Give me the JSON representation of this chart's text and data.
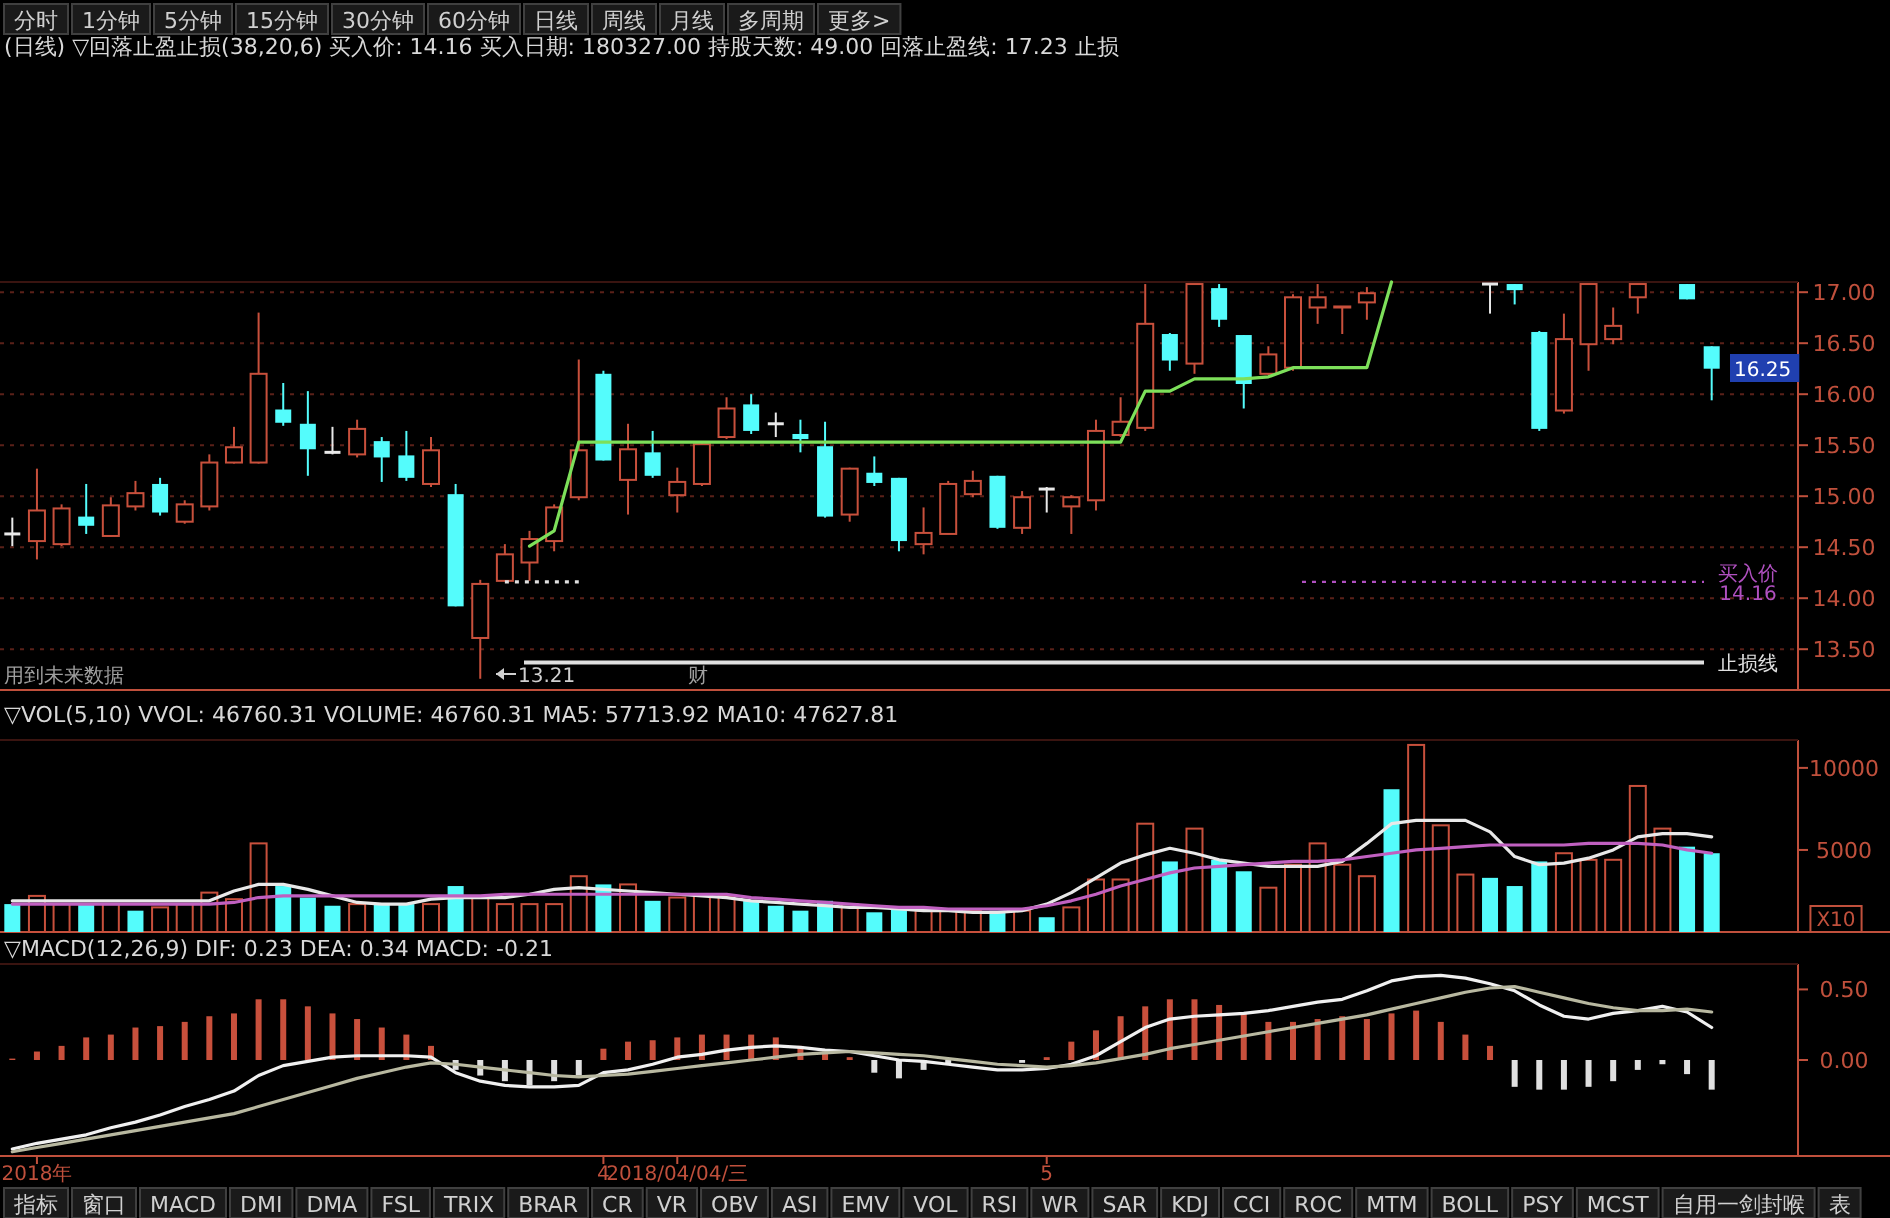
{
  "chart_data": [
    {
      "type": "other",
      "annotations": [
        "分时",
        "1分钟",
        "5分钟",
        "15分钟",
        "30分钟",
        "60分钟",
        "日线",
        "周线",
        "月线",
        "多周期",
        "更多>"
      ]
    },
    {
      "type": "candlestick",
      "title": "(日线) ▽回落止盈止损(38,20,6) 买入价: 14.16 买入日期: 180327.00 持股天数: 49.00 回落止盈线: 17.23 止损",
      "categories": [
        null,
        null,
        null,
        null,
        null,
        null,
        null,
        null,
        null,
        null,
        null,
        null,
        null,
        null,
        null,
        null,
        null,
        null,
        null,
        null,
        null,
        null,
        null,
        null,
        null,
        null,
        null,
        null,
        null,
        null,
        null,
        null,
        null,
        null,
        null,
        null,
        null,
        null,
        null,
        null,
        null,
        null,
        null,
        null,
        null,
        null,
        null,
        null,
        null,
        null,
        null,
        null,
        null,
        null,
        null,
        null,
        null,
        null,
        null,
        null,
        null,
        null,
        null,
        null,
        null,
        null,
        null,
        null,
        null,
        null
      ],
      "ohlc": [
        [
          14.63,
          14.79,
          14.51,
          14.63
        ],
        [
          14.56,
          15.27,
          14.38,
          14.86
        ],
        [
          14.53,
          14.92,
          14.51,
          14.88
        ],
        [
          14.8,
          15.12,
          14.63,
          14.71
        ],
        [
          14.61,
          14.99,
          14.6,
          14.91
        ],
        [
          14.9,
          15.15,
          14.86,
          15.03
        ],
        [
          15.12,
          15.18,
          14.81,
          14.84
        ],
        [
          14.75,
          14.96,
          14.73,
          14.92
        ],
        [
          14.9,
          15.41,
          14.86,
          15.33
        ],
        [
          15.33,
          15.68,
          15.32,
          15.48
        ],
        [
          15.33,
          16.8,
          15.32,
          16.2
        ],
        [
          15.85,
          16.11,
          15.69,
          15.72
        ],
        [
          15.71,
          16.03,
          15.2,
          15.46
        ],
        [
          15.43,
          15.68,
          15.41,
          15.43
        ],
        [
          15.41,
          15.75,
          15.38,
          15.66
        ],
        [
          15.54,
          15.58,
          15.14,
          15.38
        ],
        [
          15.4,
          15.64,
          15.15,
          15.18
        ],
        [
          15.12,
          15.58,
          15.09,
          15.45
        ],
        [
          15.02,
          15.12,
          13.92,
          13.92
        ],
        [
          13.61,
          14.18,
          13.21,
          14.14
        ],
        [
          14.17,
          14.53,
          14.17,
          14.43
        ],
        [
          14.35,
          14.66,
          14.17,
          14.58
        ],
        [
          14.56,
          14.92,
          14.46,
          14.89
        ],
        [
          14.99,
          16.34,
          14.96,
          15.45
        ],
        [
          16.2,
          16.23,
          15.35,
          15.35
        ],
        [
          15.16,
          15.71,
          14.82,
          15.46
        ],
        [
          15.43,
          15.64,
          15.18,
          15.2
        ],
        [
          15.01,
          15.28,
          14.84,
          15.14
        ],
        [
          15.12,
          15.54,
          15.1,
          15.51
        ],
        [
          15.58,
          15.97,
          15.56,
          15.86
        ],
        [
          15.9,
          16.0,
          15.61,
          15.64
        ],
        [
          15.71,
          15.82,
          15.58,
          15.71
        ],
        [
          15.61,
          15.75,
          15.43,
          15.56
        ],
        [
          15.49,
          15.73,
          14.79,
          14.8
        ],
        [
          14.82,
          15.28,
          14.75,
          15.27
        ],
        [
          15.23,
          15.39,
          15.1,
          15.13
        ],
        [
          15.18,
          15.18,
          14.46,
          14.56
        ],
        [
          14.53,
          14.89,
          14.43,
          14.64
        ],
        [
          14.63,
          15.15,
          14.63,
          15.12
        ],
        [
          15.02,
          15.25,
          14.99,
          15.15
        ],
        [
          15.2,
          15.2,
          14.68,
          14.69
        ],
        [
          14.69,
          15.05,
          14.63,
          14.99
        ],
        [
          15.07,
          15.09,
          14.84,
          15.07
        ],
        [
          14.9,
          15.01,
          14.63,
          14.99
        ],
        [
          14.96,
          15.75,
          14.86,
          15.64
        ],
        [
          15.6,
          15.97,
          15.58,
          15.73
        ],
        [
          15.67,
          17.08,
          15.64,
          16.69
        ],
        [
          16.59,
          16.6,
          16.23,
          16.33
        ],
        [
          16.3,
          17.08,
          16.2,
          17.08
        ],
        [
          17.04,
          17.08,
          16.66,
          16.73
        ],
        [
          16.58,
          16.58,
          15.86,
          16.1
        ],
        [
          16.2,
          16.47,
          16.19,
          16.39
        ],
        [
          16.26,
          16.98,
          16.23,
          16.95
        ],
        [
          16.85,
          17.08,
          16.69,
          16.95
        ],
        [
          16.85,
          16.86,
          16.59,
          16.86
        ],
        [
          16.9,
          17.05,
          16.73,
          16.99
        ],
        null,
        null,
        null,
        null,
        [
          17.08,
          17.08,
          16.79,
          17.08
        ],
        [
          17.08,
          17.08,
          16.88,
          17.02
        ],
        [
          16.61,
          16.62,
          15.64,
          15.66
        ],
        [
          15.84,
          16.79,
          15.81,
          16.54
        ],
        [
          16.49,
          17.08,
          16.23,
          17.08
        ],
        [
          16.54,
          16.85,
          16.49,
          16.67
        ],
        [
          16.95,
          17.08,
          16.79,
          17.08
        ],
        null,
        [
          17.08,
          17.08,
          16.93,
          16.93
        ],
        [
          16.47,
          16.47,
          15.94,
          16.25
        ]
      ],
      "colors": [
        "#e8e8e8",
        "#c8503c",
        "#c8503c",
        "#54fcfc",
        "#c8503c",
        "#c8503c",
        "#54fcfc",
        "#c8503c",
        "#c8503c",
        "#c8503c",
        "#c8503c",
        "#54fcfc",
        "#54fcfc",
        "#e8e8e8",
        "#c8503c",
        "#54fcfc",
        "#54fcfc",
        "#c8503c",
        "#54fcfc",
        "#c8503c",
        "#c8503c",
        "#c8503c",
        "#c8503c",
        "#c8503c",
        "#54fcfc",
        "#c8503c",
        "#54fcfc",
        "#c8503c",
        "#c8503c",
        "#c8503c",
        "#54fcfc",
        "#e8e8e8",
        "#54fcfc",
        "#54fcfc",
        "#c8503c",
        "#54fcfc",
        "#54fcfc",
        "#c8503c",
        "#c8503c",
        "#c8503c",
        "#54fcfc",
        "#c8503c",
        "#e8e8e8",
        "#c8503c",
        "#c8503c",
        "#c8503c",
        "#c8503c",
        "#54fcfc",
        "#c8503c",
        "#54fcfc",
        "#54fcfc",
        "#c8503c",
        "#c8503c",
        "#c8503c",
        "#c8503c",
        "#c8503c",
        null,
        null,
        null,
        null,
        "#e8e8e8",
        "#54fcfc",
        "#54fcfc",
        "#c8503c",
        "#c8503c",
        "#c8503c",
        "#c8503c",
        null,
        "#54fcfc",
        "#54fcfc"
      ],
      "series": [
        {
          "type": "line",
          "color": "#7de05a",
          "values": [
            null,
            null,
            null,
            null,
            null,
            null,
            null,
            null,
            null,
            null,
            null,
            null,
            null,
            null,
            null,
            null,
            null,
            null,
            null,
            null,
            null,
            14.51,
            14.66,
            15.53,
            15.53,
            15.53,
            15.53,
            15.53,
            15.53,
            15.53,
            15.53,
            15.53,
            15.53,
            15.53,
            15.53,
            15.53,
            15.53,
            15.53,
            15.53,
            15.53,
            15.53,
            15.53,
            15.53,
            15.53,
            15.53,
            15.53,
            16.03,
            16.03,
            16.15,
            16.15,
            16.15,
            16.17,
            16.26,
            16.26,
            16.26,
            16.26,
            17.1,
            null,
            null,
            null,
            null,
            null,
            null,
            null,
            null,
            null,
            null,
            null,
            null,
            null
          ]
        },
        {
          "type": "line",
          "color": "#e0e0e0",
          "line_style": "dotted",
          "values": [
            null,
            null,
            null,
            null,
            null,
            null,
            null,
            null,
            null,
            null,
            null,
            null,
            null,
            null,
            null,
            null,
            null,
            null,
            null,
            null,
            14.16,
            14.16,
            14.16,
            14.16,
            null,
            null,
            null,
            null,
            null,
            null,
            null,
            null,
            null,
            null,
            null,
            null,
            null,
            null,
            null,
            null,
            null,
            null,
            null,
            null,
            null,
            null,
            null,
            null,
            null,
            null,
            null,
            null,
            null,
            null,
            null,
            null,
            null,
            null,
            null,
            null,
            null,
            null,
            null,
            null,
            null,
            null,
            null,
            null,
            null,
            null
          ]
        }
      ],
      "ylim": [
        13.1,
        17.1
      ],
      "yticks": [
        {
          "value": 13.5,
          "label": "13.50"
        },
        {
          "value": 14,
          "label": "14.00"
        },
        {
          "value": 14.5,
          "label": "14.50"
        },
        {
          "value": 15,
          "label": "15.00"
        },
        {
          "value": 15.5,
          "label": "15.50"
        },
        {
          "value": 16,
          "label": "16.00"
        },
        {
          "value": 16.5,
          "label": "16.50"
        },
        {
          "value": 17,
          "label": "17.00"
        }
      ],
      "grid": "y",
      "ref_lines": [
        {
          "axis": "y",
          "value": 14.16,
          "label": "买入价\n14.16",
          "color": "#b050c0",
          "line_style": "dotted"
        },
        {
          "axis": "y",
          "value": 13.37,
          "label": "止损线",
          "color": "#e0e0e0",
          "line_style": "solid"
        }
      ],
      "annotations": [
        "用到未来数据",
        "13.21",
        "财",
        "16.25"
      ]
    },
    {
      "type": "bar",
      "title": "▽VOL(5,10) VVOL: 46760.31 VOLUME: 46760.31 MA5: 57713.92 MA10: 47627.81",
      "ylabel": "X10",
      "categories": [
        null,
        null,
        null,
        null,
        null,
        null,
        null,
        null,
        null,
        null,
        null,
        null,
        null,
        null,
        null,
        null,
        null,
        null,
        null,
        null,
        null,
        null,
        null,
        null,
        null,
        null,
        null,
        null,
        null,
        null,
        null,
        null,
        null,
        null,
        null,
        null,
        null,
        null,
        null,
        null,
        null,
        null,
        null,
        null,
        null,
        null,
        null,
        null,
        null,
        null,
        null,
        null,
        null,
        null,
        null,
        null,
        null,
        null,
        null,
        null,
        null,
        null,
        null,
        null,
        null,
        null,
        null,
        null,
        null,
        null
      ],
      "series": [
        {
          "type": "bar",
          "values": [
            1700,
            2200,
            1700,
            1700,
            1700,
            1300,
            1500,
            1700,
            2400,
            2000,
            5400,
            2800,
            2100,
            1600,
            1700,
            1700,
            1700,
            1700,
            2800,
            2100,
            1700,
            1700,
            1700,
            3400,
            2900,
            2900,
            1900,
            2100,
            2200,
            2200,
            1900,
            1600,
            1300,
            1900,
            1700,
            1200,
            1500,
            1300,
            1300,
            1300,
            1300,
            1300,
            900,
            1500,
            3200,
            3200,
            6600,
            4300,
            6300,
            4400,
            3700,
            2700,
            4100,
            5400,
            4100,
            3400,
            8700,
            11400,
            6500,
            3500,
            3300,
            2800,
            4300,
            4800,
            4400,
            4400,
            8900,
            6300,
            5200,
            4800
          ],
          "colors": [
            "#54fcfc",
            "#c8503c",
            "#c8503c",
            "#54fcfc",
            "#c8503c",
            "#54fcfc",
            "#c8503c",
            "#c8503c",
            "#c8503c",
            "#c8503c",
            "#c8503c",
            "#54fcfc",
            "#54fcfc",
            "#54fcfc",
            "#c8503c",
            "#54fcfc",
            "#54fcfc",
            "#c8503c",
            "#54fcfc",
            "#c8503c",
            "#c8503c",
            "#c8503c",
            "#c8503c",
            "#c8503c",
            "#54fcfc",
            "#c8503c",
            "#54fcfc",
            "#c8503c",
            "#c8503c",
            "#c8503c",
            "#54fcfc",
            "#54fcfc",
            "#54fcfc",
            "#54fcfc",
            "#c8503c",
            "#54fcfc",
            "#54fcfc",
            "#c8503c",
            "#c8503c",
            "#c8503c",
            "#54fcfc",
            "#c8503c",
            "#54fcfc",
            "#c8503c",
            "#c8503c",
            "#c8503c",
            "#c8503c",
            "#54fcfc",
            "#c8503c",
            "#54fcfc",
            "#54fcfc",
            "#c8503c",
            "#c8503c",
            "#c8503c",
            "#c8503c",
            "#c8503c",
            "#54fcfc",
            "#c8503c",
            "#c8503c",
            "#c8503c",
            "#54fcfc",
            "#54fcfc",
            "#54fcfc",
            "#c8503c",
            "#c8503c",
            "#c8503c",
            "#c8503c",
            "#c8503c",
            "#54fcfc",
            "#54fcfc"
          ]
        },
        {
          "type": "line",
          "color": "#e8e8e8",
          "values": [
            1900,
            1900,
            1900,
            1900,
            1900,
            1900,
            1900,
            1900,
            1900,
            2500,
            2900,
            2900,
            2600,
            2200,
            1800,
            1700,
            1700,
            2000,
            2100,
            2100,
            2100,
            2300,
            2600,
            2700,
            2600,
            2500,
            2400,
            2300,
            2200,
            2100,
            1900,
            1800,
            1700,
            1600,
            1500,
            1500,
            1400,
            1300,
            1300,
            1200,
            1200,
            1300,
            1700,
            2400,
            3300,
            4200,
            4700,
            5100,
            4800,
            4400,
            4200,
            4000,
            4000,
            4000,
            4300,
            5400,
            6600,
            6800,
            6800,
            6800,
            6100,
            4600,
            4100,
            4200,
            4500,
            5000,
            5800,
            6000,
            6000,
            5800
          ]
        },
        {
          "type": "line",
          "color": "#c060c0",
          "values": [
            1700,
            1700,
            1700,
            1700,
            1700,
            1700,
            1700,
            1700,
            1700,
            1800,
            2100,
            2200,
            2200,
            2200,
            2200,
            2200,
            2200,
            2200,
            2200,
            2200,
            2300,
            2300,
            2300,
            2300,
            2300,
            2300,
            2300,
            2300,
            2300,
            2300,
            2100,
            2000,
            1900,
            1800,
            1700,
            1600,
            1500,
            1500,
            1400,
            1400,
            1400,
            1400,
            1600,
            1900,
            2300,
            2800,
            3200,
            3600,
            3900,
            4000,
            4100,
            4200,
            4300,
            4300,
            4400,
            4600,
            4800,
            5000,
            5100,
            5200,
            5300,
            5300,
            5300,
            5300,
            5400,
            5400,
            5400,
            5300,
            5000,
            4800
          ]
        }
      ],
      "ylim": [
        0,
        11700
      ],
      "yticks": [
        5000,
        10000
      ]
    },
    {
      "type": "bar",
      "title": "▽MACD(12,26,9) DIF: 0.23 DEA: 0.34 MACD: -0.21",
      "categories": [
        null,
        "2018年",
        null,
        null,
        null,
        null,
        null,
        null,
        null,
        null,
        null,
        null,
        null,
        null,
        null,
        null,
        null,
        null,
        null,
        null,
        null,
        null,
        null,
        null,
        "4",
        null,
        null,
        "2018/04/04/三",
        null,
        null,
        null,
        null,
        null,
        null,
        null,
        null,
        null,
        null,
        null,
        null,
        null,
        null,
        "5",
        null,
        null,
        null,
        null,
        null,
        null,
        null,
        null,
        null,
        null,
        null,
        null,
        null,
        null,
        null,
        null,
        null,
        null,
        null,
        null,
        null,
        null,
        null,
        null,
        null,
        null,
        null
      ],
      "series": [
        {
          "type": "bar",
          "values": [
            0.01,
            0.06,
            0.1,
            0.16,
            0.18,
            0.23,
            0.24,
            0.27,
            0.31,
            0.33,
            0.43,
            0.43,
            0.38,
            0.33,
            0.29,
            0.23,
            0.18,
            0.1,
            -0.07,
            -0.11,
            -0.15,
            -0.18,
            -0.15,
            -0.11,
            0.08,
            0.13,
            0.14,
            0.16,
            0.18,
            0.18,
            0.18,
            0.16,
            0.1,
            0.06,
            0.02,
            -0.09,
            -0.13,
            -0.07,
            -0.03,
            null,
            null,
            -0.02,
            0.02,
            0.13,
            0.21,
            0.31,
            0.38,
            0.43,
            0.43,
            0.39,
            0.33,
            0.27,
            0.27,
            0.29,
            0.31,
            0.29,
            0.33,
            0.35,
            0.27,
            0.18,
            0.1,
            -0.19,
            -0.21,
            -0.21,
            -0.19,
            -0.15,
            -0.07,
            -0.03,
            -0.1,
            -0.21
          ],
          "colors": [
            "#c8503c",
            "#c8503c",
            "#c8503c",
            "#c8503c",
            "#c8503c",
            "#c8503c",
            "#c8503c",
            "#c8503c",
            "#c8503c",
            "#c8503c",
            "#c8503c",
            "#c8503c",
            "#c8503c",
            "#c8503c",
            "#c8503c",
            "#c8503c",
            "#c8503c",
            "#c8503c",
            "#e0e0e0",
            "#e0e0e0",
            "#e0e0e0",
            "#e0e0e0",
            "#e0e0e0",
            "#e0e0e0",
            "#c8503c",
            "#c8503c",
            "#c8503c",
            "#c8503c",
            "#c8503c",
            "#c8503c",
            "#c8503c",
            "#c8503c",
            "#c8503c",
            "#c8503c",
            "#c8503c",
            "#e0e0e0",
            "#e0e0e0",
            "#e0e0e0",
            "#e0e0e0",
            null,
            null,
            "#e0e0e0",
            "#c8503c",
            "#c8503c",
            "#c8503c",
            "#c8503c",
            "#c8503c",
            "#c8503c",
            "#c8503c",
            "#c8503c",
            "#c8503c",
            "#c8503c",
            "#c8503c",
            "#c8503c",
            "#c8503c",
            "#c8503c",
            "#c8503c",
            "#c8503c",
            "#c8503c",
            "#c8503c",
            "#c8503c",
            "#e0e0e0",
            "#e0e0e0",
            "#e0e0e0",
            "#e0e0e0",
            "#e0e0e0",
            "#e0e0e0",
            "#e0e0e0",
            "#e0e0e0",
            "#e0e0e0"
          ]
        },
        {
          "type": "line",
          "color": "#f0f0f0",
          "values": [
            -0.63,
            -0.59,
            -0.56,
            -0.53,
            -0.48,
            -0.44,
            -0.39,
            -0.33,
            -0.28,
            -0.22,
            -0.11,
            -0.04,
            -0.01,
            0.02,
            0.03,
            0.03,
            0.03,
            0.02,
            -0.09,
            -0.15,
            -0.18,
            -0.19,
            -0.19,
            -0.18,
            -0.09,
            -0.07,
            -0.03,
            0.02,
            0.04,
            0.07,
            0.09,
            0.1,
            0.09,
            0.07,
            0.06,
            0.03,
            0.0,
            -0.01,
            -0.03,
            -0.05,
            -0.07,
            -0.07,
            -0.06,
            -0.03,
            0.03,
            0.13,
            0.23,
            0.29,
            0.31,
            0.32,
            0.33,
            0.35,
            0.38,
            0.41,
            0.43,
            0.49,
            0.56,
            0.59,
            0.6,
            0.58,
            0.54,
            0.49,
            0.39,
            0.31,
            0.29,
            0.33,
            0.35,
            0.38,
            0.34,
            0.23
          ]
        },
        {
          "type": "line",
          "color": "#b8b8a0",
          "values": [
            -0.65,
            -0.62,
            -0.59,
            -0.56,
            -0.53,
            -0.5,
            -0.47,
            -0.44,
            -0.41,
            -0.38,
            -0.33,
            -0.28,
            -0.23,
            -0.18,
            -0.13,
            -0.09,
            -0.05,
            -0.02,
            -0.03,
            -0.05,
            -0.07,
            -0.09,
            -0.11,
            -0.12,
            -0.11,
            -0.1,
            -0.08,
            -0.06,
            -0.04,
            -0.02,
            0.0,
            0.02,
            0.04,
            0.05,
            0.06,
            0.05,
            0.04,
            0.03,
            0.01,
            -0.01,
            -0.03,
            -0.04,
            -0.05,
            -0.04,
            -0.02,
            0.01,
            0.04,
            0.08,
            0.11,
            0.14,
            0.17,
            0.2,
            0.23,
            0.26,
            0.29,
            0.32,
            0.36,
            0.4,
            0.44,
            0.48,
            0.51,
            0.52,
            0.48,
            0.44,
            0.4,
            0.37,
            0.35,
            0.35,
            0.36,
            0.34
          ]
        }
      ],
      "ylim": [
        -0.68,
        0.68
      ],
      "yticks": [
        {
          "value": 0,
          "label": "0.00"
        },
        {
          "value": 0.5,
          "label": "0.50"
        }
      ]
    },
    {
      "type": "other",
      "annotations": [
        "指标",
        "窗口",
        "MACD",
        "DMI",
        "DMA",
        "FSL",
        "TRIX",
        "BRAR",
        "CR",
        "VR",
        "OBV",
        "ASI",
        "EMV",
        "VOL",
        "RSI",
        "WR",
        "SAR",
        "KDJ",
        "CCI",
        "ROC",
        "MTM",
        "BOLL",
        "PSY",
        "MCST",
        "自用一剑封喉",
        "表"
      ]
    }
  ]
}
